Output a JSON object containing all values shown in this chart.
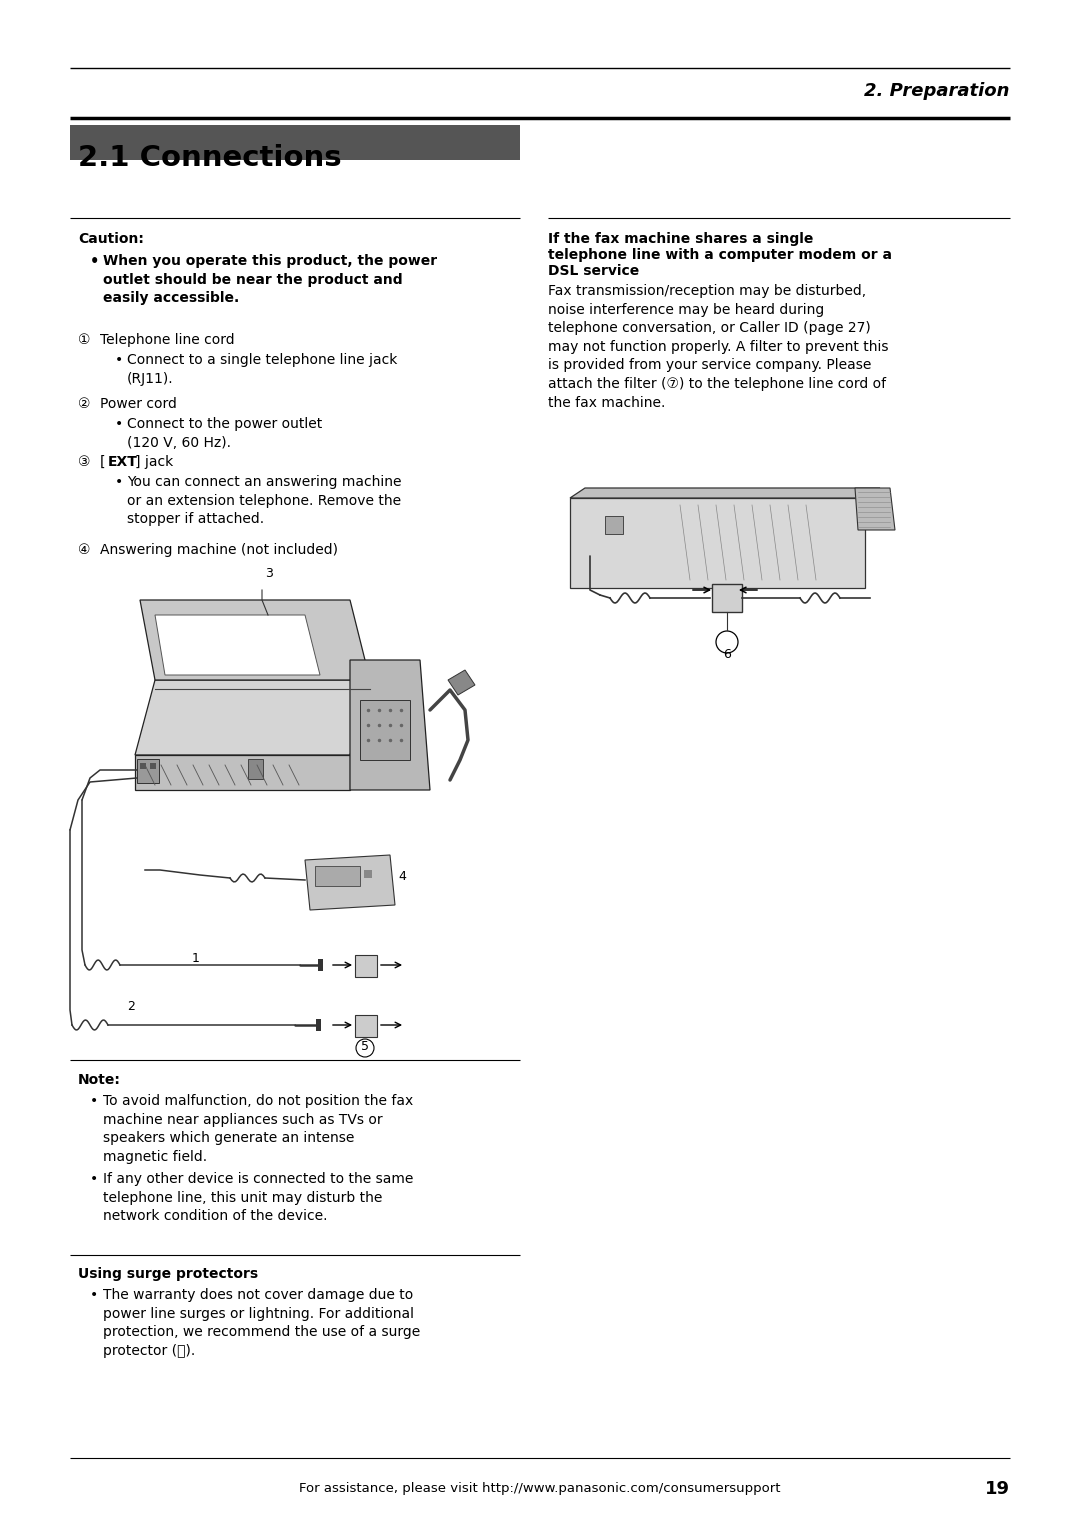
{
  "page_title": "2. Preparation",
  "section_title": "2.1 Connections",
  "bg_color": "#ffffff",
  "header_bar_color": "#4a4a4a",
  "caution_label": "Caution:",
  "caution_bold_text": "When you operate this product, the power\noutlet should be near the product and\neasily accessible.",
  "item1_num": "①",
  "item1_title": "Telephone line cord",
  "item1_bullet": "Connect to a single telephone line jack\n(RJ11).",
  "item2_num": "②",
  "item2_title": "Power cord",
  "item2_bullet": "Connect to the power outlet\n(120 V, 60 Hz).",
  "item3_num": "③",
  "item3_pre": "[",
  "item3_bold": "EXT",
  "item3_post": "] jack",
  "item3_bullet": "You can connect an answering machine\nor an extension telephone. Remove the\nstopper if attached.",
  "item4_num": "④",
  "item4_title": "Answering machine (not included)",
  "note_label": "Note:",
  "note1": "To avoid malfunction, do not position the fax\nmachine near appliances such as TVs or\nspeakers which generate an intense\nmagnetic field.",
  "note2": "If any other device is connected to the same\ntelephone line, this unit may disturb the\nnetwork condition of the device.",
  "surge_title": "Using surge protectors",
  "surge_bullet": "The warranty does not cover damage due to\npower line surges or lightning. For additional\nprotection, we recommend the use of a surge\nprotector (ⓤ).",
  "right_title_line1": "If the fax machine shares a single",
  "right_title_line2": "telephone line with a computer modem or a",
  "right_title_line3": "DSL service",
  "right_body": "Fax transmission/reception may be disturbed,\nnoise interference may be heard during\ntelephone conversation, or Caller ID (page 27)\nmay not function properly. A filter to prevent this\nis provided from your service company. Please\nattach the filter (⑦) to the telephone line cord of\nthe fax machine.",
  "footer_text": "For assistance, please visit http://www.panasonic.com/consumersupport",
  "footer_page": "19",
  "bar_color": "#555555",
  "text_color": "#000000",
  "line_color": "#000000"
}
